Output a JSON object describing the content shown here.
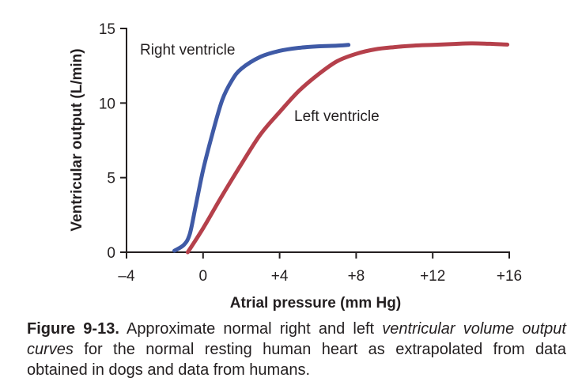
{
  "chart_data": {
    "type": "line",
    "xlabel": "Atrial pressure (mm Hg)",
    "ylabel": "Ventricular output (L/min)",
    "xlim": [
      -4,
      16
    ],
    "ylim": [
      0,
      15
    ],
    "x_ticks": [
      -4,
      0,
      4,
      8,
      12,
      16
    ],
    "x_tick_labels": [
      "–4",
      "0",
      "+4",
      "+8",
      "+12",
      "+16"
    ],
    "y_ticks": [
      0,
      5,
      10,
      15
    ],
    "y_tick_labels": [
      "0",
      "5",
      "10",
      "15"
    ],
    "grid": false,
    "series": [
      {
        "name": "Right ventricle",
        "color": "#3f5aa6",
        "x": [
          -1.5,
          -1.0,
          -0.7,
          -0.4,
          0.0,
          0.5,
          1.0,
          1.5,
          2.0,
          3.0,
          4.0,
          5.0,
          6.0,
          7.0,
          7.6
        ],
        "y": [
          0.1,
          0.5,
          1.2,
          3.0,
          5.5,
          8.0,
          10.2,
          11.5,
          12.3,
          13.1,
          13.5,
          13.7,
          13.8,
          13.85,
          13.9
        ]
      },
      {
        "name": "Left ventricle",
        "color": "#b5404b",
        "x": [
          -0.8,
          0.0,
          1.0,
          2.0,
          3.0,
          4.0,
          5.0,
          6.0,
          7.0,
          8.0,
          9.0,
          10.0,
          11.0,
          12.0,
          13.0,
          14.0,
          15.0,
          15.9
        ],
        "y": [
          0.0,
          1.6,
          3.8,
          5.9,
          7.9,
          9.4,
          10.8,
          11.9,
          12.8,
          13.3,
          13.6,
          13.75,
          13.85,
          13.9,
          13.95,
          14.0,
          13.97,
          13.92
        ]
      }
    ],
    "annotations": [
      "Right ventricle",
      "Left ventricle"
    ]
  },
  "caption": {
    "label": "Figure 9-13.",
    "text_before": " Approximate normal right and left ",
    "italic_text": "ventricular volume output curves",
    "text_after": " for the normal resting human heart as extrapolated from data obtained in dogs and data from humans."
  }
}
